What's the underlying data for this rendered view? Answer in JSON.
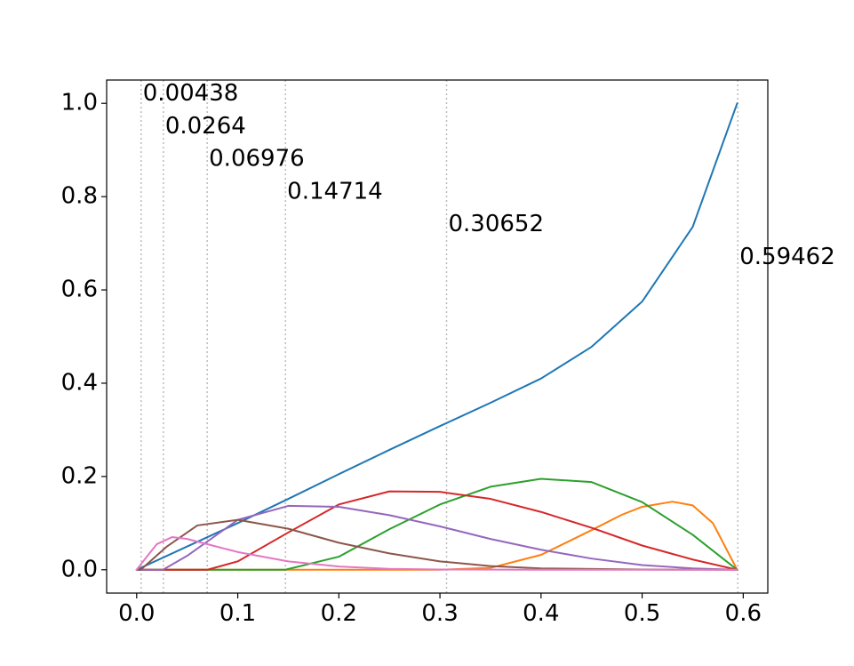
{
  "chart_data": {
    "type": "line",
    "title": "",
    "xlabel": "",
    "ylabel": "",
    "xlim": [
      -0.0297,
      0.6243
    ],
    "ylim": [
      -0.05,
      1.05
    ],
    "x_ticks": [
      0.0,
      0.1,
      0.2,
      0.3,
      0.4,
      0.5,
      0.6
    ],
    "x_tick_labels": [
      "0.0",
      "0.1",
      "0.2",
      "0.3",
      "0.4",
      "0.5",
      "0.6"
    ],
    "y_ticks": [
      0.0,
      0.2,
      0.4,
      0.6,
      0.8,
      1.0
    ],
    "y_tick_labels": [
      "0.0",
      "0.2",
      "0.4",
      "0.6",
      "0.8",
      "1.0"
    ],
    "grid": false,
    "legend": "none",
    "vertical_lines": [
      {
        "x": 0.00438,
        "label": "0.00438",
        "label_y": 1.02
      },
      {
        "x": 0.0264,
        "label": "0.0264",
        "label_y": 0.95
      },
      {
        "x": 0.06976,
        "label": "0.06976",
        "label_y": 0.88
      },
      {
        "x": 0.14714,
        "label": "0.14714",
        "label_y": 0.81
      },
      {
        "x": 0.30652,
        "label": "0.30652",
        "label_y": 0.74
      },
      {
        "x": 0.59462,
        "label": "0.59462",
        "label_y": 0.67
      }
    ],
    "vertical_line_color": "#bbbbbb",
    "series": [
      {
        "color": "#1f77b4",
        "x": [
          0.0,
          0.05,
          0.1,
          0.15,
          0.2,
          0.25,
          0.3,
          0.35,
          0.4,
          0.45,
          0.5,
          0.55,
          0.594
        ],
        "y": [
          0.0,
          0.05,
          0.1,
          0.152,
          0.205,
          0.257,
          0.308,
          0.358,
          0.41,
          0.478,
          0.575,
          0.735,
          1.0
        ]
      },
      {
        "color": "#ff7f0e",
        "x": [
          0.0,
          0.3,
          0.35,
          0.4,
          0.45,
          0.48,
          0.5,
          0.53,
          0.55,
          0.57,
          0.594
        ],
        "y": [
          0.0,
          0.0,
          0.004,
          0.032,
          0.085,
          0.118,
          0.135,
          0.146,
          0.138,
          0.1,
          0.0
        ]
      },
      {
        "color": "#2ca02c",
        "x": [
          0.0,
          0.147,
          0.2,
          0.25,
          0.3,
          0.35,
          0.4,
          0.45,
          0.5,
          0.55,
          0.594
        ],
        "y": [
          0.0,
          0.0,
          0.028,
          0.087,
          0.14,
          0.178,
          0.195,
          0.188,
          0.145,
          0.075,
          0.0
        ]
      },
      {
        "color": "#d62728",
        "x": [
          0.0,
          0.07,
          0.1,
          0.15,
          0.2,
          0.25,
          0.3,
          0.35,
          0.4,
          0.45,
          0.5,
          0.55,
          0.594
        ],
        "y": [
          0.0,
          0.0,
          0.018,
          0.08,
          0.14,
          0.168,
          0.167,
          0.152,
          0.124,
          0.09,
          0.052,
          0.022,
          0.0
        ]
      },
      {
        "color": "#9467bd",
        "x": [
          0.0,
          0.026,
          0.05,
          0.1,
          0.15,
          0.2,
          0.25,
          0.3,
          0.35,
          0.4,
          0.45,
          0.5,
          0.55,
          0.594
        ],
        "y": [
          0.0,
          0.0,
          0.03,
          0.107,
          0.137,
          0.135,
          0.117,
          0.093,
          0.066,
          0.043,
          0.024,
          0.01,
          0.003,
          0.0
        ]
      },
      {
        "color": "#8c564b",
        "x": [
          0.0,
          0.004,
          0.03,
          0.06,
          0.1,
          0.15,
          0.2,
          0.25,
          0.3,
          0.35,
          0.4,
          0.5,
          0.594
        ],
        "y": [
          0.0,
          0.0,
          0.05,
          0.095,
          0.107,
          0.088,
          0.058,
          0.035,
          0.018,
          0.008,
          0.003,
          0.0005,
          0.0
        ]
      },
      {
        "color": "#e377c2",
        "x": [
          0.0,
          0.01,
          0.02,
          0.035,
          0.05,
          0.075,
          0.1,
          0.15,
          0.2,
          0.25,
          0.3,
          0.4,
          0.594
        ],
        "y": [
          0.0,
          0.028,
          0.055,
          0.07,
          0.066,
          0.052,
          0.038,
          0.018,
          0.007,
          0.002,
          0.0005,
          0.0,
          0.0
        ]
      }
    ]
  }
}
